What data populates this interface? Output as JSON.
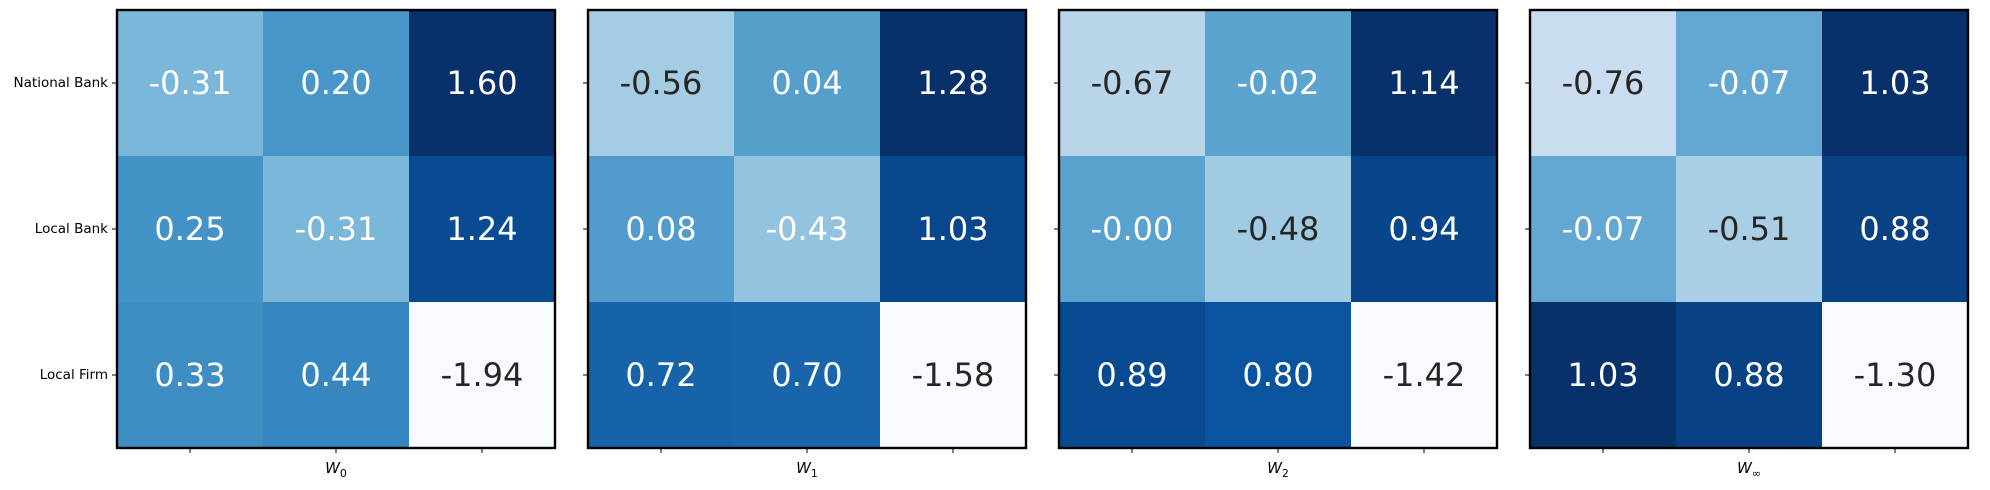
{
  "chart_data": {
    "type": "heatmap",
    "colormap": "Blues",
    "row_labels": [
      "National Bank",
      "Local Bank",
      "Local Firm"
    ],
    "panels": [
      {
        "xlabel_base": "W",
        "xlabel_sub": "0",
        "values": [
          [
            -0.31,
            0.2,
            1.6
          ],
          [
            0.25,
            -0.31,
            1.24
          ],
          [
            0.33,
            0.44,
            -1.94
          ]
        ],
        "labels": [
          [
            "-0.31",
            "0.20",
            "1.60"
          ],
          [
            "0.25",
            "-0.31",
            "1.24"
          ],
          [
            "0.33",
            "0.44",
            "-1.94"
          ]
        ]
      },
      {
        "xlabel_base": "W",
        "xlabel_sub": "1",
        "values": [
          [
            -0.56,
            0.04,
            1.28
          ],
          [
            0.08,
            -0.43,
            1.03
          ],
          [
            0.72,
            0.7,
            -1.58
          ]
        ],
        "labels": [
          [
            "-0.56",
            "0.04",
            "1.28"
          ],
          [
            "0.08",
            "-0.43",
            "1.03"
          ],
          [
            "0.72",
            "0.70",
            "-1.58"
          ]
        ]
      },
      {
        "xlabel_base": "W",
        "xlabel_sub": "2",
        "values": [
          [
            -0.67,
            -0.02,
            1.14
          ],
          [
            -0.0,
            -0.48,
            0.94
          ],
          [
            0.89,
            0.8,
            -1.42
          ]
        ],
        "labels": [
          [
            "-0.67",
            "-0.02",
            "1.14"
          ],
          [
            "-0.00",
            "-0.48",
            "0.94"
          ],
          [
            "0.89",
            "0.80",
            "-1.42"
          ]
        ]
      },
      {
        "xlabel_base": "W",
        "xlabel_sub": "∞",
        "values": [
          [
            -0.76,
            -0.07,
            1.03
          ],
          [
            -0.07,
            -0.51,
            0.88
          ],
          [
            1.03,
            0.88,
            -1.3
          ]
        ],
        "labels": [
          [
            "-0.76",
            "-0.07",
            "1.03"
          ],
          [
            "-0.07",
            "-0.51",
            "0.88"
          ],
          [
            "1.03",
            "0.88",
            "-1.30"
          ]
        ]
      }
    ]
  }
}
